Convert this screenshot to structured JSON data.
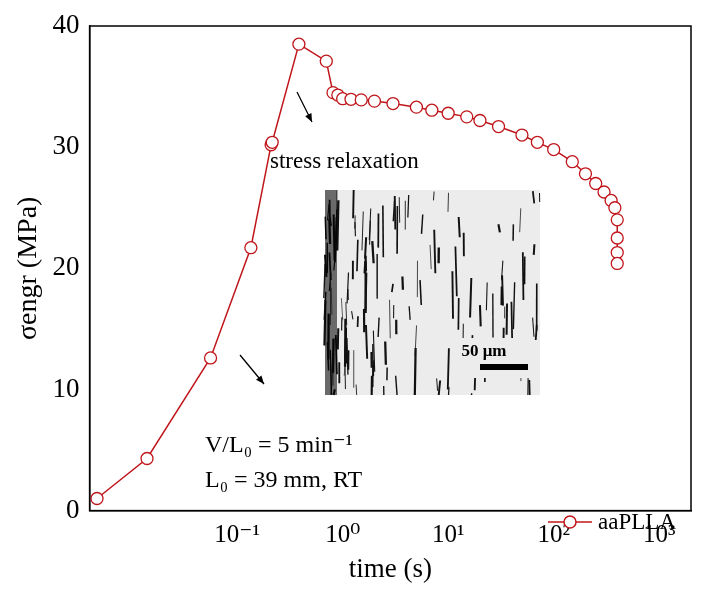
{
  "chart_data": {
    "type": "line",
    "x_label": "time (s)",
    "y_label": "σengr (MPa)",
    "log": "x",
    "grid": false,
    "legend": "lower right",
    "xlim": [
      0.004,
      2000
    ],
    "xticks": [
      {
        "value": 0.1,
        "label": "10⁻¹"
      },
      {
        "value": 1,
        "label": "10⁰"
      },
      {
        "value": 10,
        "label": "10¹"
      },
      {
        "value": 100,
        "label": "10²"
      },
      {
        "value": 1000,
        "label": "10³"
      }
    ],
    "ylim": [
      0,
      40
    ],
    "yticks": [
      0,
      10,
      20,
      30,
      40
    ],
    "annotations": [
      "stress relaxation",
      "V/L₀ = 5 min⁻¹",
      "L₀ = 39 mm, RT"
    ],
    "inset_scale_bar": "50 μm",
    "series": [
      {
        "name": "aaPLLA",
        "color": "#c0161b",
        "marker": "open circle",
        "line_style": "solid",
        "x": [
          0.0047,
          0.014,
          0.056,
          0.135,
          0.21,
          0.215,
          0.385,
          0.7,
          0.81,
          0.9,
          1,
          1.2,
          1.5,
          2,
          3,
          5,
          7,
          10,
          15,
          20,
          30,
          50,
          70,
          100,
          150,
          200,
          250,
          300,
          350,
          380,
          400,
          400,
          400,
          400
        ],
        "values": [
          1.0,
          4.3,
          12.6,
          21.7,
          30.2,
          30.4,
          38.5,
          37.1,
          34.5,
          34.3,
          34.0,
          33.95,
          33.9,
          33.8,
          33.6,
          33.3,
          33.05,
          32.8,
          32.5,
          32.2,
          31.7,
          31.0,
          30.4,
          29.8,
          28.8,
          27.8,
          27.0,
          26.3,
          25.6,
          25.0,
          24.0,
          22.5,
          21.3,
          20.4
        ]
      }
    ]
  }
}
